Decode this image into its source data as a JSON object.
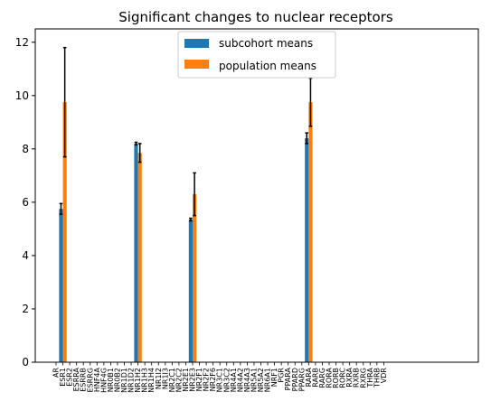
{
  "chart_data": {
    "type": "bar",
    "title": "Significant changes to nuclear receptors",
    "xlabel": "",
    "ylabel": "",
    "ylim": [
      0,
      12.5
    ],
    "yticks": [
      0,
      2,
      4,
      6,
      8,
      10,
      12
    ],
    "grid": false,
    "legend_position": "top-center",
    "colors": {
      "subcohort": "#1f77b4",
      "population": "#ff7f0e",
      "error": "#000000"
    },
    "categories": [
      "AR",
      "ESR1",
      "ESR2",
      "ESRRA",
      "ESRRB",
      "ESRRG",
      "HNF4A",
      "HNF4G",
      "NR0B1",
      "NR0B2",
      "NR1D1",
      "NR1D2",
      "NR1H2",
      "NR1H3",
      "NR1H4",
      "NR1I2",
      "NR1I3",
      "NR2C1",
      "NR2C2",
      "NR2E1",
      "NR2E3",
      "NR2F1",
      "NR2F2",
      "NR2F6",
      "NR3C1",
      "NR3C2",
      "NR4A1",
      "NR4A2",
      "NR4A3",
      "NR5A1",
      "NR5A2",
      "NR6A1",
      "NRF1",
      "PGR",
      "PPARA",
      "PPARD",
      "PPARG",
      "RARA",
      "RARB",
      "RARG",
      "RORA",
      "RORB",
      "RORC",
      "RXRA",
      "RXRB",
      "RXRG",
      "THRA",
      "THRB",
      "VDR"
    ],
    "series": [
      {
        "name": "subcohort means",
        "values": [
          0,
          5.75,
          0,
          0,
          0,
          0,
          0,
          0,
          0,
          0,
          0,
          0,
          8.2,
          0,
          0,
          0,
          0,
          0,
          0,
          0,
          5.35,
          0,
          0,
          0,
          0,
          0,
          0,
          0,
          0,
          0,
          0,
          0,
          0,
          0,
          0,
          0,
          0,
          8.4,
          0,
          0,
          0,
          0,
          0,
          0,
          0,
          0,
          0,
          0,
          0
        ],
        "errors": [
          0,
          0.2,
          0,
          0,
          0,
          0,
          0,
          0,
          0,
          0,
          0,
          0,
          0.05,
          0,
          0,
          0,
          0,
          0,
          0,
          0,
          0.05,
          0,
          0,
          0,
          0,
          0,
          0,
          0,
          0,
          0,
          0,
          0,
          0,
          0,
          0,
          0,
          0,
          0.2,
          0,
          0,
          0,
          0,
          0,
          0,
          0,
          0,
          0,
          0,
          0
        ]
      },
      {
        "name": "population means",
        "values": [
          0,
          9.75,
          0,
          0,
          0,
          0,
          0,
          0,
          0,
          0,
          0,
          0,
          7.85,
          0,
          0,
          0,
          0,
          0,
          0,
          0,
          6.3,
          0,
          0,
          0,
          0,
          0,
          0,
          0,
          0,
          0,
          0,
          0,
          0,
          0,
          0,
          0,
          0,
          9.75,
          0,
          0,
          0,
          0,
          0,
          0,
          0,
          0,
          0,
          0,
          0
        ],
        "errors": [
          0,
          2.05,
          0,
          0,
          0,
          0,
          0,
          0,
          0,
          0,
          0,
          0,
          0.35,
          0,
          0,
          0,
          0,
          0,
          0,
          0,
          0.8,
          0,
          0,
          0,
          0,
          0,
          0,
          0,
          0,
          0,
          0,
          0,
          0,
          0,
          0,
          0,
          0,
          0.9,
          0,
          0,
          0,
          0,
          0,
          0,
          0,
          0,
          0,
          0,
          0
        ]
      }
    ]
  }
}
